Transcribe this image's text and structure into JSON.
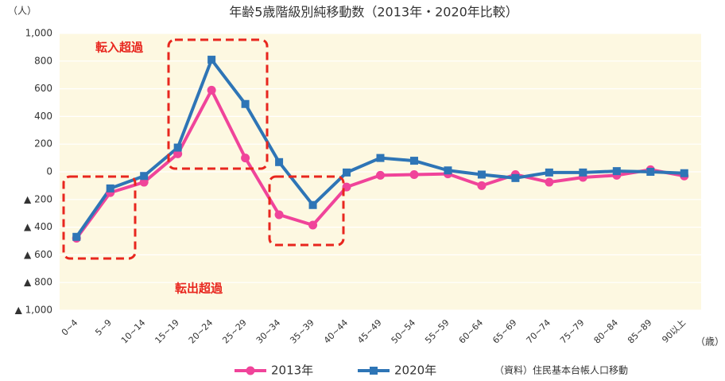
{
  "chart_data": {
    "type": "line",
    "title": "年齢5歳階級別純移動数（2013年・2020年比較）",
    "y_unit": "（人）",
    "x_unit": "（歳）",
    "source": "（資料）住民基本台帳人口移動",
    "annotations": [
      "転入超過",
      "転出超過"
    ],
    "categories": [
      "0~4",
      "5~9",
      "10~14",
      "15~19",
      "20~24",
      "25~29",
      "30~34",
      "35~39",
      "40~44",
      "45~49",
      "50~54",
      "55~59",
      "60~64",
      "65~69",
      "70~74",
      "75~79",
      "80~84",
      "85~89",
      "90以上"
    ],
    "series": [
      {
        "name": "2013年",
        "color": "#f0449a",
        "marker": "circle",
        "values": [
          -480,
          -150,
          -75,
          130,
          590,
          100,
          -310,
          -385,
          -110,
          -25,
          -20,
          -15,
          -100,
          -20,
          -75,
          -40,
          -25,
          15,
          -30
        ]
      },
      {
        "name": "2020年",
        "color": "#2e75b6",
        "marker": "square",
        "values": [
          -470,
          -120,
          -30,
          175,
          810,
          490,
          70,
          -240,
          -5,
          100,
          80,
          10,
          -20,
          -45,
          -5,
          -5,
          5,
          0,
          -10
        ]
      }
    ],
    "ylim": [
      -1000,
      1000
    ],
    "yticks": [
      {
        "value": 1000,
        "label": "1,000"
      },
      {
        "value": 800,
        "label": "800"
      },
      {
        "value": 600,
        "label": "600"
      },
      {
        "value": 400,
        "label": "400"
      },
      {
        "value": 200,
        "label": "200"
      },
      0,
      {
        "value": -200,
        "label": "▲ 200"
      },
      {
        "value": -400,
        "label": "▲ 400"
      },
      {
        "value": -600,
        "label": "▲ 600"
      },
      {
        "value": -800,
        "label": "▲ 800"
      },
      {
        "value": -1000,
        "label": "▲ 1,000"
      }
    ],
    "grid": true,
    "background": "#fdf8e1"
  }
}
